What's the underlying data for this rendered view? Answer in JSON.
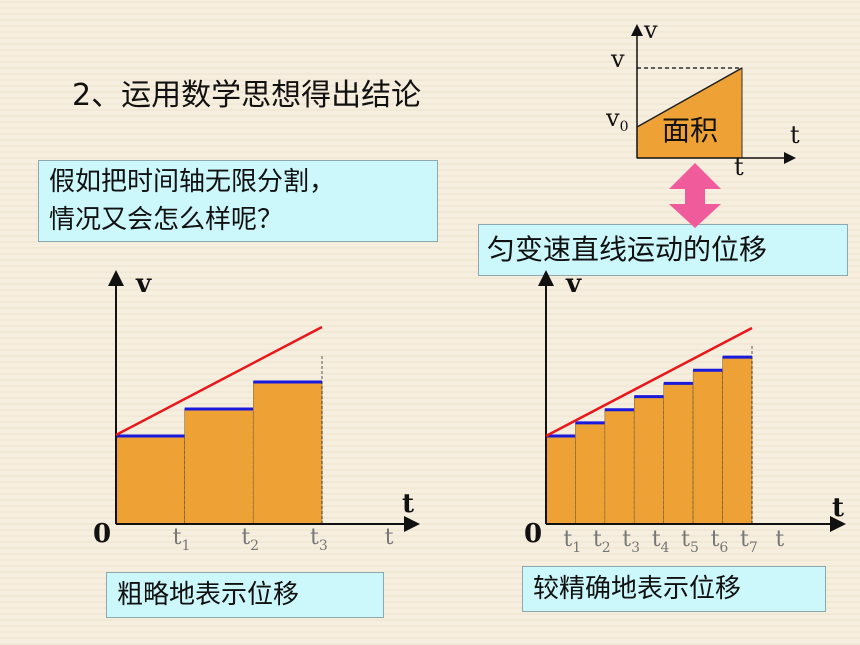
{
  "heading": "2、运用数学思想得出结论",
  "question_line1": "假如把时间轴无限分割，",
  "question_line2": "情况又会怎么样呢？",
  "uniform_label": "匀变速直线运动的位移",
  "rough_label": "粗略地表示位移",
  "fine_label": "较精确地表示位移",
  "top_graph": {
    "y_axis": "v",
    "x_axis": "t",
    "v_label": "v",
    "v0_main": "v",
    "v0_sub": "0",
    "t_label": "t",
    "area_label": "面积"
  },
  "rough_graph": {
    "y_axis": "v",
    "x_axis": "t",
    "origin": "0",
    "ticks": [
      {
        "main": "t",
        "sub": "1"
      },
      {
        "main": "t",
        "sub": "2"
      },
      {
        "main": "t",
        "sub": "3"
      },
      {
        "main": "t",
        "sub": ""
      }
    ]
  },
  "fine_graph": {
    "y_axis": "v",
    "x_axis": "t",
    "origin": "0",
    "ticks": [
      {
        "main": "t",
        "sub": "1"
      },
      {
        "main": "t",
        "sub": "2"
      },
      {
        "main": "t",
        "sub": "3"
      },
      {
        "main": "t",
        "sub": "4"
      },
      {
        "main": "t",
        "sub": "5"
      },
      {
        "main": "t",
        "sub": "6"
      },
      {
        "main": "t",
        "sub": "7"
      },
      {
        "main": "t",
        "sub": ""
      }
    ]
  },
  "colors": {
    "fill": "#eea235",
    "line": "#e8171b",
    "step": "#1a1adc",
    "arrow": "#ef5b9b",
    "box": "#ccf7fb"
  }
}
